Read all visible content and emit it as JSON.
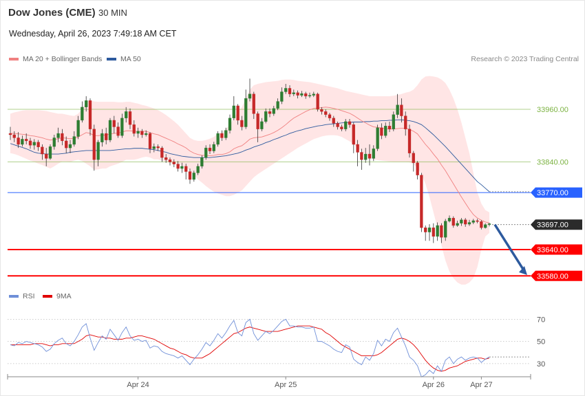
{
  "header": {
    "title": "Dow Jones (CME)",
    "interval": "30 MIN",
    "datetime": "Wednesday, April 26, 2023 7:49:18 AM CET"
  },
  "legend": {
    "ma20_label": "MA 20 + Bollinger Bands",
    "ma20_color": "#f08080",
    "ma50_label": "MA 50",
    "ma50_color": "#2d5a9e",
    "credit": "Research © 2023 Trading Central"
  },
  "rsi_legend": {
    "rsi_label": "RSI",
    "rsi_color": "#6f8fd8",
    "ma9_label": "9MA",
    "ma9_color": "#e00000"
  },
  "colors": {
    "up_candle": "#2e7d32",
    "down_candle": "#c62828",
    "band_fill": "#ffdcdc",
    "resistance": "#7cb342",
    "support": "#ff0000",
    "pivot": "#2962ff",
    "arrow": "#2d5a9e"
  },
  "chart_data": {
    "type": "candlestick",
    "x_ticks": [
      "Apr 24",
      "Apr 25",
      "Apr 26",
      "Apr 27"
    ],
    "price_ylim": [
      33535,
      34040
    ],
    "levels": [
      {
        "value": 33960,
        "label": "33960.00",
        "style": "resistance"
      },
      {
        "value": 33840,
        "label": "33840.00",
        "style": "resistance"
      },
      {
        "value": 33770,
        "label": "33770.00",
        "style": "pivot"
      },
      {
        "value": 33697,
        "label": "33697.00",
        "style": "last"
      },
      {
        "value": 33640,
        "label": "33640.00",
        "style": "support"
      },
      {
        "value": 33580,
        "label": "33580.00",
        "style": "support"
      }
    ],
    "forecast_arrow": {
      "from": 33697,
      "to": 33582
    },
    "candles": [
      [
        33905,
        33902,
        33920,
        33890
      ],
      [
        33902,
        33895,
        33910,
        33885
      ],
      [
        33895,
        33880,
        33908,
        33872
      ],
      [
        33880,
        33892,
        33900,
        33875
      ],
      [
        33892,
        33888,
        33905,
        33880
      ],
      [
        33888,
        33878,
        33895,
        33870
      ],
      [
        33878,
        33885,
        33892,
        33868
      ],
      [
        33885,
        33874,
        33890,
        33865
      ],
      [
        33874,
        33858,
        33880,
        33845
      ],
      [
        33858,
        33848,
        33872,
        33830
      ],
      [
        33848,
        33875,
        33880,
        33845
      ],
      [
        33875,
        33895,
        33902,
        33868
      ],
      [
        33895,
        33905,
        33918,
        33885
      ],
      [
        33905,
        33888,
        33915,
        33878
      ],
      [
        33888,
        33872,
        33898,
        33860
      ],
      [
        33872,
        33880,
        33890,
        33860
      ],
      [
        33880,
        33898,
        33910,
        33875
      ],
      [
        33898,
        33935,
        33945,
        33892
      ],
      [
        33935,
        33965,
        33978,
        33930
      ],
      [
        33965,
        33980,
        33990,
        33955
      ],
      [
        33980,
        33915,
        33985,
        33900
      ],
      [
        33915,
        33845,
        33925,
        33820
      ],
      [
        33845,
        33885,
        33890,
        33830
      ],
      [
        33885,
        33905,
        33915,
        33875
      ],
      [
        33905,
        33890,
        33918,
        33880
      ],
      [
        33890,
        33935,
        33940,
        33885
      ],
      [
        33935,
        33920,
        33945,
        33905
      ],
      [
        33920,
        33900,
        33930,
        33895
      ],
      [
        33900,
        33940,
        33950,
        33895
      ],
      [
        33940,
        33955,
        33965,
        33930
      ],
      [
        33955,
        33925,
        33962,
        33915
      ],
      [
        33925,
        33905,
        33935,
        33898
      ],
      [
        33905,
        33910,
        33918,
        33895
      ],
      [
        33910,
        33902,
        33915,
        33895
      ],
      [
        33902,
        33905,
        33912,
        33898
      ],
      [
        33905,
        33870,
        33908,
        33860
      ],
      [
        33870,
        33875,
        33882,
        33862
      ],
      [
        33875,
        33872,
        33880,
        33865
      ],
      [
        33872,
        33850,
        33876,
        33840
      ],
      [
        33850,
        33845,
        33858,
        33838
      ],
      [
        33845,
        33840,
        33850,
        33832
      ],
      [
        33840,
        33835,
        33846,
        33828
      ],
      [
        33835,
        33825,
        33842,
        33818
      ],
      [
        33825,
        33830,
        33838,
        33815
      ],
      [
        33830,
        33818,
        33836,
        33800
      ],
      [
        33818,
        33800,
        33825,
        33790
      ],
      [
        33800,
        33815,
        33820,
        33795
      ],
      [
        33815,
        33830,
        33836,
        33810
      ],
      [
        33830,
        33850,
        33855,
        33825
      ],
      [
        33850,
        33872,
        33878,
        33845
      ],
      [
        33872,
        33865,
        33880,
        33858
      ],
      [
        33865,
        33880,
        33886,
        33860
      ],
      [
        33880,
        33905,
        33910,
        33875
      ],
      [
        33905,
        33895,
        33912,
        33888
      ],
      [
        33895,
        33912,
        33918,
        33890
      ],
      [
        33912,
        33940,
        33948,
        33905
      ],
      [
        33940,
        33968,
        33990,
        33935
      ],
      [
        33968,
        33935,
        33972,
        33925
      ],
      [
        33935,
        33920,
        33945,
        33912
      ],
      [
        33920,
        33985,
        34005,
        33915
      ],
      [
        33985,
        33995,
        34030,
        33978
      ],
      [
        33995,
        33950,
        34000,
        33938
      ],
      [
        33950,
        33915,
        33955,
        33885
      ],
      [
        33915,
        33932,
        33940,
        33910
      ],
      [
        33932,
        33955,
        33962,
        33928
      ],
      [
        33955,
        33950,
        33962,
        33942
      ],
      [
        33950,
        33962,
        33968,
        33945
      ],
      [
        33962,
        33978,
        33985,
        33958
      ],
      [
        33978,
        34000,
        34010,
        33972
      ],
      [
        34000,
        34008,
        34018,
        33995
      ],
      [
        34008,
        33995,
        34015,
        33988
      ],
      [
        33995,
        33998,
        34005,
        33990
      ],
      [
        33998,
        33992,
        34003,
        33985
      ],
      [
        33992,
        33996,
        34002,
        33988
      ],
      [
        33996,
        33990,
        34000,
        33984
      ],
      [
        33990,
        33992,
        33998,
        33986
      ],
      [
        33992,
        33995,
        34000,
        33988
      ],
      [
        33995,
        33960,
        33998,
        33955
      ],
      [
        33960,
        33955,
        33965,
        33948
      ],
      [
        33955,
        33948,
        33960,
        33942
      ],
      [
        33948,
        33940,
        33952,
        33934
      ],
      [
        33940,
        33928,
        33945,
        33920
      ],
      [
        33928,
        33920,
        33932,
        33914
      ],
      [
        33920,
        33915,
        33925,
        33910
      ],
      [
        33915,
        33932,
        33938,
        33910
      ],
      [
        33932,
        33925,
        33938,
        33918
      ],
      [
        33925,
        33880,
        33930,
        33860
      ],
      [
        33880,
        33862,
        33890,
        33830
      ],
      [
        33862,
        33845,
        33870,
        33822
      ],
      [
        33845,
        33858,
        33872,
        33838
      ],
      [
        33858,
        33848,
        33880,
        33832
      ],
      [
        33848,
        33870,
        33878,
        33842
      ],
      [
        33870,
        33918,
        33925,
        33865
      ],
      [
        33918,
        33900,
        33928,
        33892
      ],
      [
        33900,
        33922,
        33930,
        33895
      ],
      [
        33922,
        33915,
        33932,
        33908
      ],
      [
        33915,
        33948,
        33955,
        33910
      ],
      [
        33948,
        33970,
        33995,
        33940
      ],
      [
        33970,
        33945,
        33985,
        33930
      ],
      [
        33945,
        33915,
        33955,
        33900
      ],
      [
        33915,
        33860,
        33925,
        33850
      ],
      [
        33860,
        33838,
        33865,
        33818
      ],
      [
        33838,
        33810,
        33842,
        33800
      ],
      [
        33810,
        33690,
        33815,
        33680
      ],
      [
        33690,
        33680,
        33695,
        33660
      ],
      [
        33680,
        33690,
        33698,
        33660
      ],
      [
        33690,
        33670,
        33700,
        33655
      ],
      [
        33670,
        33695,
        33702,
        33660
      ],
      [
        33695,
        33668,
        33700,
        33655
      ],
      [
        33668,
        33705,
        33710,
        33660
      ],
      [
        33705,
        33712,
        33718,
        33702
      ],
      [
        33712,
        33695,
        33716,
        33690
      ],
      [
        33695,
        33700,
        33706,
        33692
      ],
      [
        33700,
        33708,
        33712,
        33694
      ],
      [
        33708,
        33698,
        33712,
        33692
      ],
      [
        33698,
        33702,
        33708,
        33694
      ],
      [
        33702,
        33706,
        33710,
        33698
      ],
      [
        33706,
        33704,
        33710,
        33700
      ],
      [
        33704,
        33690,
        33707,
        33686
      ],
      [
        33690,
        33697,
        33700,
        33688
      ],
      [
        33697,
        33699,
        33701,
        33693
      ]
    ],
    "ma20": [
      33905,
      33905,
      33904,
      33903,
      33902,
      33900,
      33899,
      33897,
      33895,
      33892,
      33890,
      33891,
      33893,
      33895,
      33894,
      33893,
      33894,
      33897,
      33902,
      33907,
      33905,
      33900,
      33900,
      33901,
      33901,
      33904,
      33905,
      33906,
      33908,
      33911,
      33911,
      33910,
      33910,
      33910,
      33910,
      33907,
      33904,
      33902,
      33898,
      33894,
      33890,
      33886,
      33881,
      33877,
      33872,
      33865,
      33860,
      33857,
      33855,
      33855,
      33854,
      33855,
      33857,
      33857,
      33859,
      33863,
      33870,
      33874,
      33877,
      33884,
      33892,
      33895,
      33896,
      33897,
      33900,
      33903,
      33907,
      33912,
      33918,
      33925,
      33933,
      33940,
      33945,
      33950,
      33955,
      33959,
      33962,
      33963,
      33964,
      33965,
      33964,
      33962,
      33960,
      33957,
      33954,
      33951,
      33946,
      33940,
      33934,
      33929,
      33924,
      33920,
      33919,
      33917,
      33916,
      33915,
      33915,
      33916,
      33917,
      33917,
      33914,
      33910,
      33904,
      33892,
      33880,
      33870,
      33858,
      33847,
      33833,
      33820,
      33805,
      33790,
      33775,
      33760,
      33746,
      33732,
      33720,
      33712,
      33707,
      33703,
      33701
    ],
    "upper_band": [
      33950,
      33953,
      33955,
      33957,
      33958,
      33958,
      33958,
      33958,
      33957,
      33956,
      33954,
      33952,
      33950,
      33950,
      33948,
      33946,
      33945,
      33950,
      33962,
      33978,
      33980,
      33978,
      33977,
      33977,
      33977,
      33977,
      33977,
      33976,
      33976,
      33977,
      33977,
      33975,
      33973,
      33970,
      33968,
      33965,
      33962,
      33958,
      33953,
      33947,
      33940,
      33933,
      33925,
      33915,
      33905,
      33895,
      33890,
      33888,
      33888,
      33890,
      33893,
      33897,
      33905,
      33908,
      33915,
      33925,
      33940,
      33955,
      33965,
      33985,
      34005,
      34015,
      34018,
      34020,
      34022,
      34023,
      34024,
      34025,
      34027,
      34028,
      34028,
      34027,
      34025,
      34024,
      34023,
      34022,
      34020,
      34018,
      34016,
      34014,
      34012,
      34010,
      34008,
      34005,
      34002,
      34000,
      33998,
      33996,
      33994,
      33992,
      33990,
      33990,
      33990,
      33990,
      33990,
      33990,
      33991,
      33993,
      33995,
      33998,
      34000,
      34005,
      34015,
      34028,
      34035,
      34036,
      34035,
      34033,
      34028,
      34020,
      34005,
      33985,
      33960,
      33930,
      33895,
      33860,
      33815,
      33770,
      33745,
      33730,
      33725
    ],
    "lower_band": [
      33860,
      33858,
      33855,
      33851,
      33847,
      33843,
      33840,
      33836,
      33833,
      33829,
      33825,
      33830,
      33836,
      33841,
      33841,
      33840,
      33843,
      33845,
      33842,
      33836,
      33830,
      33822,
      33823,
      33825,
      33825,
      33830,
      33833,
      33836,
      33840,
      33845,
      33845,
      33845,
      33847,
      33850,
      33852,
      33850,
      33846,
      33846,
      33843,
      33840,
      33838,
      33836,
      33833,
      33832,
      33828,
      33820,
      33810,
      33800,
      33793,
      33785,
      33778,
      33772,
      33768,
      33765,
      33762,
      33762,
      33765,
      33770,
      33775,
      33785,
      33795,
      33805,
      33812,
      33818,
      33824,
      33830,
      33836,
      33842,
      33848,
      33854,
      33860,
      33866,
      33872,
      33877,
      33882,
      33887,
      33892,
      33895,
      33898,
      33900,
      33901,
      33901,
      33900,
      33897,
      33892,
      33887,
      33880,
      33872,
      33864,
      33857,
      33850,
      33846,
      33844,
      33843,
      33842,
      33841,
      33840,
      33840,
      33840,
      33840,
      33839,
      33835,
      33826,
      33812,
      33790,
      33760,
      33725,
      33690,
      33650,
      33615,
      33590,
      33575,
      33565,
      33560,
      33560,
      33565,
      33575,
      33600,
      33640,
      33670,
      33678
    ],
    "ma50": [
      33882,
      33879,
      33876,
      33873,
      33870,
      33866,
      33862,
      33860,
      33859,
      33858,
      33858,
      33858,
      33858,
      33859,
      33860,
      33862,
      33863,
      33864,
      33865,
      33866,
      33866,
      33866,
      33866,
      33866,
      33866,
      33866,
      33867,
      33868,
      33869,
      33870,
      33870,
      33871,
      33871,
      33871,
      33870,
      33869,
      33868,
      33866,
      33864,
      33862,
      33859,
      33857,
      33855,
      33853,
      33852,
      33851,
      33850,
      33850,
      33850,
      33850,
      33850,
      33851,
      33852,
      33853,
      33854,
      33856,
      33858,
      33860,
      33863,
      33867,
      33870,
      33874,
      33877,
      33880,
      33884,
      33887,
      33891,
      33894,
      33898,
      33901,
      33905,
      33908,
      33911,
      33913,
      33916,
      33918,
      33920,
      33922,
      33923,
      33925,
      33926,
      33927,
      33928,
      33929,
      33930,
      33930,
      33931,
      33931,
      33931,
      33932,
      33932,
      33933,
      33933,
      33934,
      33934,
      33935,
      33935,
      33936,
      33936,
      33935,
      33934,
      33932,
      33929,
      33925,
      33918,
      33910,
      33902,
      33893,
      33884,
      33875,
      33865,
      33855,
      33845,
      33835,
      33825,
      33815,
      33805,
      33795,
      33788,
      33780,
      33772
    ],
    "rsi_ticks": [
      70,
      50,
      30
    ],
    "rsi_ylim": [
      20,
      82
    ],
    "rsi": [
      47,
      46,
      49,
      48,
      50,
      49,
      48,
      47,
      45,
      41,
      43,
      48,
      51,
      53,
      48,
      46,
      50,
      56,
      63,
      66,
      53,
      42,
      49,
      55,
      52,
      61,
      56,
      51,
      58,
      63,
      55,
      51,
      52,
      50,
      51,
      44,
      46,
      45,
      41,
      39,
      38,
      37,
      35,
      37,
      33,
      29,
      34,
      38,
      43,
      49,
      46,
      51,
      57,
      53,
      58,
      64,
      69,
      58,
      55,
      67,
      70,
      57,
      51,
      55,
      59,
      57,
      60,
      64,
      68,
      70,
      64,
      64,
      63,
      63,
      62,
      62,
      63,
      50,
      50,
      48,
      46,
      43,
      41,
      40,
      47,
      45,
      34,
      31,
      29,
      36,
      33,
      39,
      51,
      46,
      52,
      50,
      58,
      62,
      54,
      46,
      36,
      33,
      28,
      18,
      20,
      24,
      21,
      28,
      23,
      33,
      36,
      30,
      34,
      36,
      33,
      35,
      36,
      35,
      31,
      34,
      36
    ],
    "rsi_ma9": [
      47,
      47,
      47,
      47,
      47,
      47,
      48,
      48,
      48,
      47,
      46,
      47,
      47,
      48,
      48,
      48,
      48,
      50,
      52,
      55,
      56,
      55,
      54,
      54,
      53,
      53,
      52,
      52,
      52,
      53,
      53,
      54,
      55,
      55,
      54,
      53,
      52,
      50,
      48,
      46,
      44,
      43,
      41,
      39,
      38,
      36,
      35,
      35,
      35,
      37,
      39,
      42,
      45,
      48,
      51,
      54,
      57,
      58,
      60,
      62,
      63,
      62,
      61,
      60,
      59,
      59,
      59,
      59,
      60,
      61,
      62,
      63,
      64,
      64,
      64,
      64,
      63,
      62,
      61,
      58,
      56,
      53,
      50,
      47,
      45,
      43,
      41,
      39,
      37,
      37,
      37,
      37,
      38,
      40,
      43,
      46,
      49,
      52,
      53,
      52,
      50,
      47,
      43,
      38,
      33,
      29,
      26,
      24,
      23,
      24,
      26,
      27,
      28,
      30,
      32,
      33,
      34,
      35,
      35,
      34,
      35
    ]
  }
}
